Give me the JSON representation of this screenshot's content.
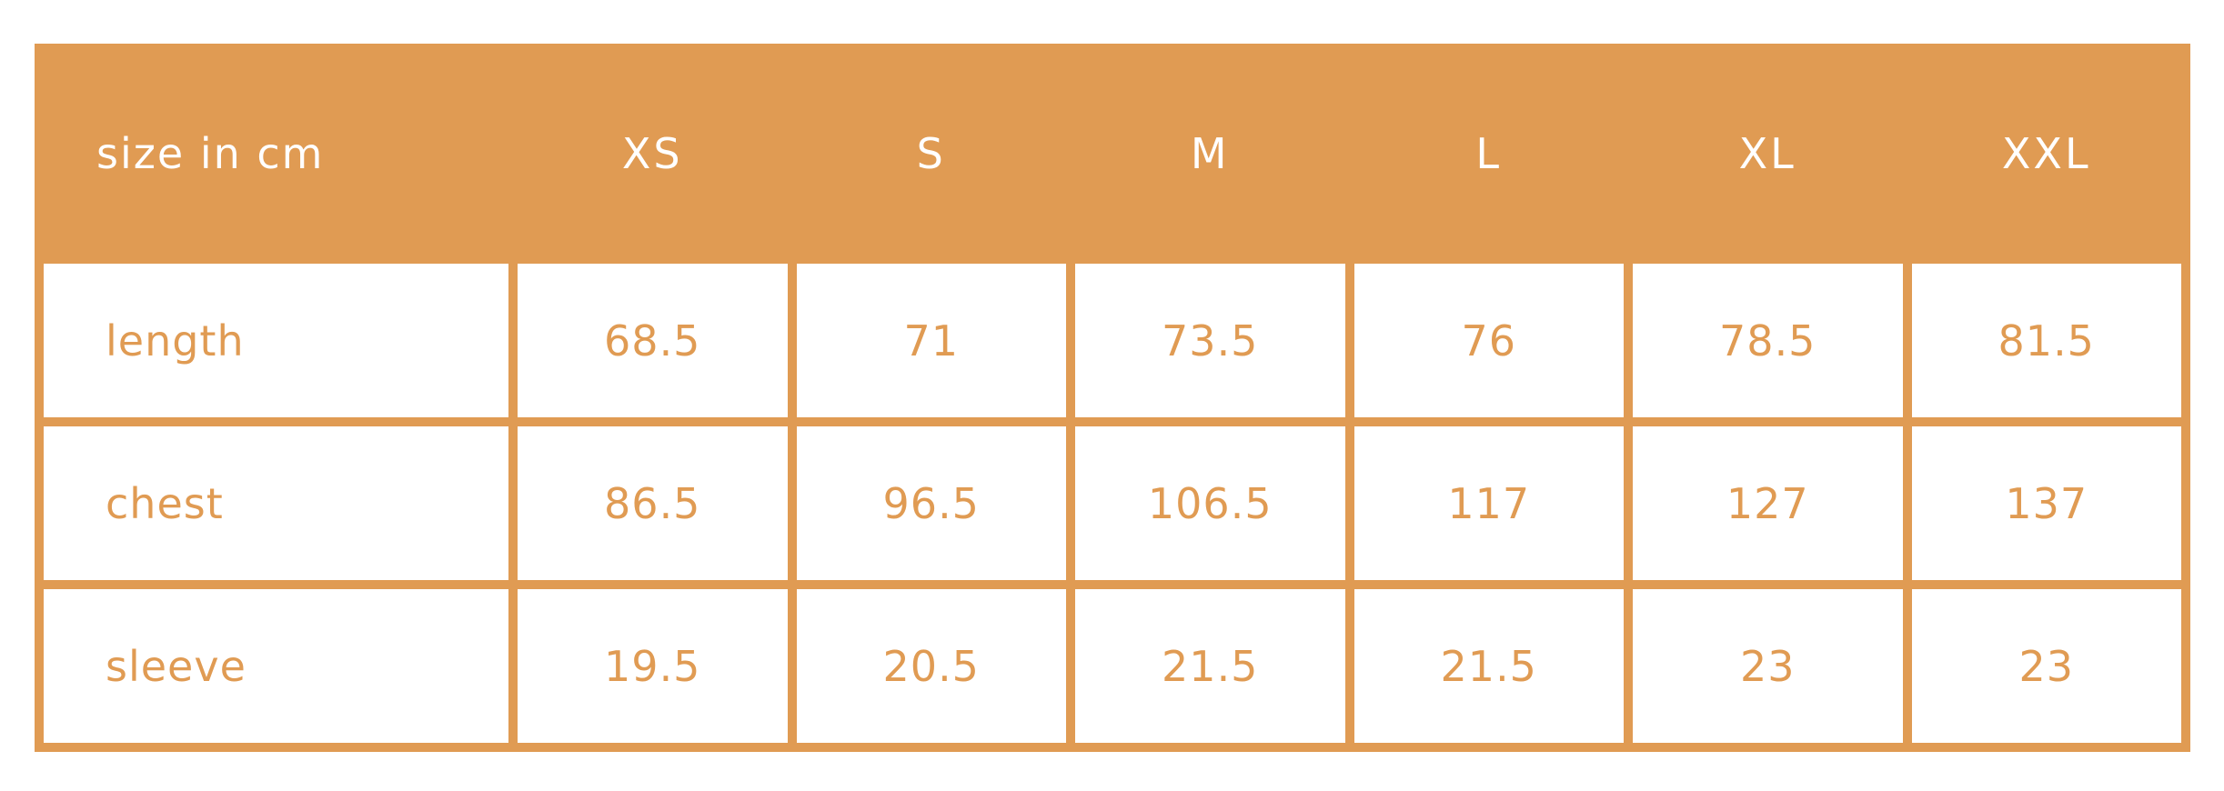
{
  "table": {
    "corner_label": "size in cm",
    "sizes": [
      "XS",
      "S",
      "M",
      "L",
      "XL",
      "XXL"
    ],
    "rows": [
      {
        "label": "length",
        "values": [
          "68.5",
          "71",
          "73.5",
          "76",
          "78.5",
          "81.5"
        ]
      },
      {
        "label": "chest",
        "values": [
          "86.5",
          "96.5",
          "106.5",
          "117",
          "127",
          "137"
        ]
      },
      {
        "label": "sleeve",
        "values": [
          "19.5",
          "20.5",
          "21.5",
          "21.5",
          "23",
          "23"
        ]
      }
    ]
  },
  "colors": {
    "accent": "#e09b53",
    "background": "#ffffff",
    "header_text": "#ffffff"
  }
}
